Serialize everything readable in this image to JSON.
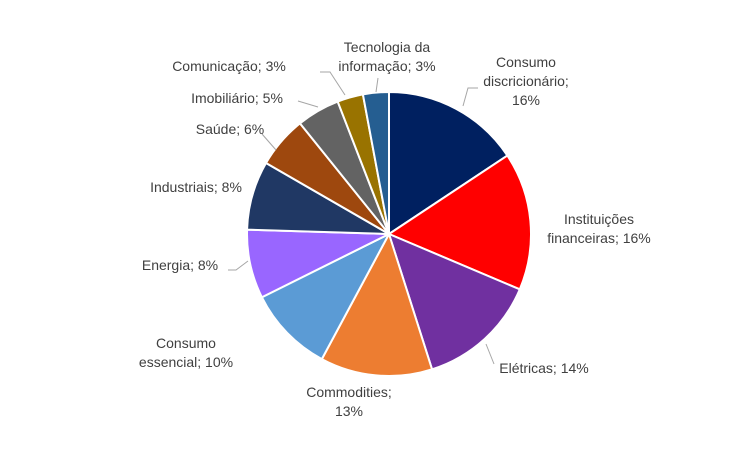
{
  "chart_data": {
    "type": "pie",
    "title": "",
    "slices": [
      {
        "label": "Consumo discricionário",
        "value": 16,
        "display": "16%",
        "color": "#002060"
      },
      {
        "label": "Instituições financeiras",
        "value": 16,
        "display": "16%",
        "color": "#ff0000"
      },
      {
        "label": "Elétricas",
        "value": 14,
        "display": "14%",
        "color": "#7030a0"
      },
      {
        "label": "Commodities",
        "value": 13,
        "display": "13%",
        "color": "#ed7d31"
      },
      {
        "label": "Consumo essencial",
        "value": 10,
        "display": "10%",
        "color": "#5b9bd5"
      },
      {
        "label": "Energia",
        "value": 8,
        "display": "8%",
        "color": "#9966ff"
      },
      {
        "label": "Industriais",
        "value": 8,
        "display": "8%",
        "color": "#203864"
      },
      {
        "label": "Saúde",
        "value": 6,
        "display": "6%",
        "color": "#9e480e"
      },
      {
        "label": "Imobiliário",
        "value": 5,
        "display": "5%",
        "color": "#636363"
      },
      {
        "label": "Comunicação",
        "value": 3,
        "display": "3%",
        "color": "#997300"
      },
      {
        "label": "Tecnologia da informação",
        "value": 3,
        "display": "3%",
        "color": "#255e91"
      }
    ],
    "legend": "none"
  }
}
